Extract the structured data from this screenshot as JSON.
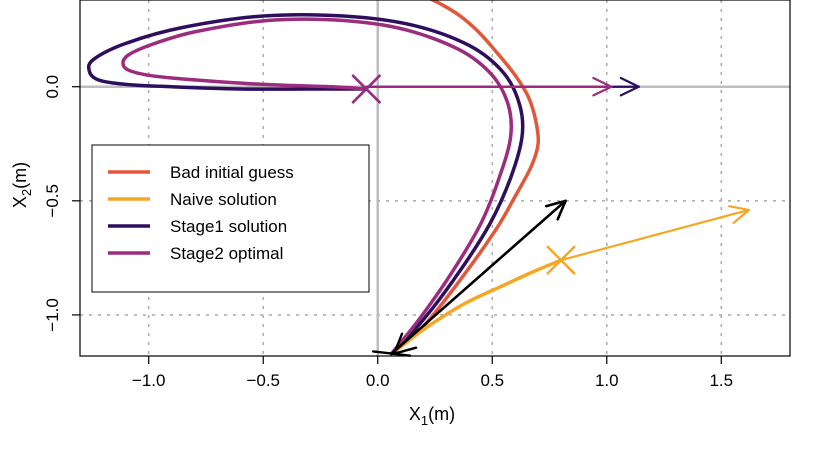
{
  "chart_data": {
    "type": "line",
    "xlabel": "X",
    "xlabel_sub": "1",
    "xlabel_unit": "(m)",
    "ylabel": "X",
    "ylabel_sub": "2",
    "ylabel_unit": "(m)",
    "xlim": [
      -1.3,
      1.8
    ],
    "ylim": [
      -1.18,
      0.38
    ],
    "x_ticks": [
      -1.0,
      -0.5,
      0.0,
      0.5,
      1.0,
      1.5
    ],
    "x_tick_labels": [
      "−1.0",
      "−0.5",
      "0.0",
      "0.5",
      "1.0",
      "1.5"
    ],
    "y_ticks": [
      -1.0,
      -0.5,
      0.0
    ],
    "y_tick_labels": [
      "−1.0",
      "−0.5",
      "0.0"
    ],
    "grid": true,
    "legend_position": "left",
    "series": [
      {
        "name": "Bad initial guess",
        "color": "#e0573a",
        "width": 3.5,
        "points": [
          [
            0.06,
            -1.17
          ],
          [
            0.2,
            -1.05
          ],
          [
            0.38,
            -0.82
          ],
          [
            0.52,
            -0.62
          ],
          [
            0.6,
            -0.48
          ],
          [
            0.67,
            -0.35
          ],
          [
            0.7,
            -0.25
          ],
          [
            0.69,
            -0.15
          ],
          [
            0.66,
            -0.05
          ],
          [
            0.6,
            0.05
          ],
          [
            0.52,
            0.15
          ],
          [
            0.44,
            0.24
          ],
          [
            0.36,
            0.31
          ],
          [
            0.28,
            0.36
          ],
          [
            0.22,
            0.39
          ]
        ]
      },
      {
        "name": "Naive solution",
        "color": "#f5a623",
        "width": 3.5,
        "points": [
          [
            0.06,
            -1.17
          ],
          [
            0.22,
            -1.05
          ],
          [
            0.38,
            -0.95
          ],
          [
            0.55,
            -0.87
          ],
          [
            0.68,
            -0.81
          ],
          [
            0.8,
            -0.76
          ]
        ]
      },
      {
        "name": "Stage1 solution",
        "color": "#2d0f5e",
        "width": 3.5,
        "points": [
          [
            0.06,
            -1.17
          ],
          [
            0.2,
            -1.02
          ],
          [
            0.35,
            -0.82
          ],
          [
            0.49,
            -0.6
          ],
          [
            0.58,
            -0.4
          ],
          [
            0.63,
            -0.22
          ],
          [
            0.62,
            -0.08
          ],
          [
            0.55,
            0.06
          ],
          [
            0.4,
            0.18
          ],
          [
            0.15,
            0.27
          ],
          [
            -0.15,
            0.31
          ],
          [
            -0.5,
            0.31
          ],
          [
            -0.85,
            0.26
          ],
          [
            -1.1,
            0.19
          ],
          [
            -1.24,
            0.12
          ],
          [
            -1.26,
            0.07
          ],
          [
            -1.22,
            0.03
          ],
          [
            -1.1,
            0.01
          ],
          [
            -0.9,
            0.0
          ],
          [
            -0.6,
            -0.01
          ],
          [
            -0.3,
            -0.01
          ],
          [
            -0.05,
            -0.01
          ]
        ]
      },
      {
        "name": "Stage2 optimal",
        "color": "#9b2c7e",
        "width": 3.5,
        "points": [
          [
            0.06,
            -1.17
          ],
          [
            0.18,
            -1.02
          ],
          [
            0.32,
            -0.82
          ],
          [
            0.45,
            -0.6
          ],
          [
            0.53,
            -0.4
          ],
          [
            0.58,
            -0.22
          ],
          [
            0.57,
            -0.08
          ],
          [
            0.5,
            0.05
          ],
          [
            0.36,
            0.16
          ],
          [
            0.12,
            0.25
          ],
          [
            -0.15,
            0.29
          ],
          [
            -0.48,
            0.29
          ],
          [
            -0.8,
            0.24
          ],
          [
            -1.0,
            0.18
          ],
          [
            -1.1,
            0.13
          ],
          [
            -1.1,
            0.08
          ],
          [
            -1.0,
            0.05
          ],
          [
            -0.8,
            0.03
          ],
          [
            -0.5,
            0.01
          ],
          [
            -0.2,
            0.0
          ],
          [
            -0.05,
            -0.01
          ]
        ]
      }
    ],
    "arrows": [
      {
        "color": "#2d0f5e",
        "from": [
          -0.05,
          0.0
        ],
        "to": [
          1.14,
          0.0
        ],
        "width": 2.2
      },
      {
        "color": "#9b2c7e",
        "from": [
          -0.05,
          0.0
        ],
        "to": [
          1.02,
          0.0
        ],
        "width": 2.2
      },
      {
        "color": "#f5a623",
        "from": [
          0.8,
          -0.76
        ],
        "to": [
          1.62,
          -0.54
        ],
        "width": 2.2
      },
      {
        "color": "#000000",
        "from": [
          0.06,
          -1.17
        ],
        "to": [
          0.82,
          -0.5
        ],
        "width": 2.6
      }
    ],
    "markers": [
      {
        "color": "#2d0f5e",
        "x": -0.05,
        "y": -0.01,
        "shape": "x"
      },
      {
        "color": "#9b2c7e",
        "x": -0.05,
        "y": -0.01,
        "shape": "x"
      },
      {
        "color": "#f5a623",
        "x": 0.8,
        "y": -0.76,
        "shape": "x"
      }
    ],
    "start_arrow": {
      "color": "#000000",
      "from": [
        -0.02,
        -1.16
      ],
      "to": [
        0.08,
        -1.17
      ]
    }
  }
}
